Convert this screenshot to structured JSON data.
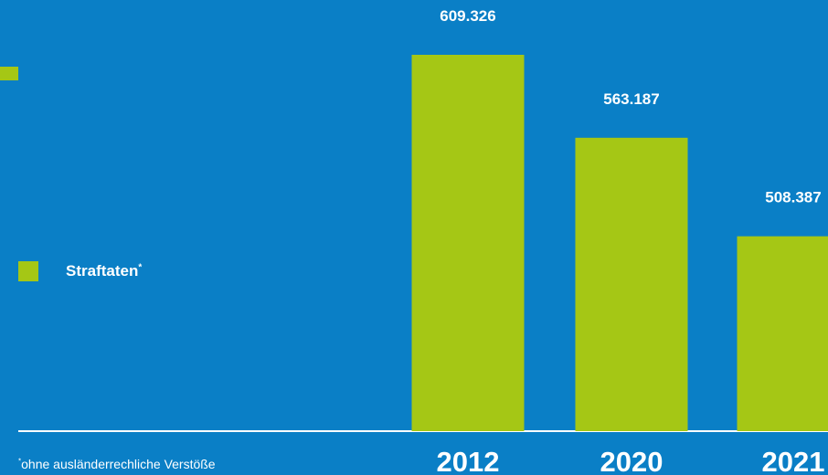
{
  "chart_data": {
    "type": "bar",
    "categories": [
      "2012",
      "2020",
      "2021"
    ],
    "values": [
      609326,
      563187,
      508387
    ],
    "value_labels": [
      "609.326",
      "563.187",
      "508.387"
    ],
    "legend": {
      "label": "Straftaten",
      "marker": "*"
    },
    "footnote": {
      "marker": "*",
      "text": "ohne ausländerrechliche Verstöße"
    },
    "ylim": [
      400000,
      620000
    ],
    "grid": false
  },
  "colors": {
    "background": "#0a7fc6",
    "bar": "#a5c715",
    "text": "#ffffff",
    "axis": "#ffffff"
  }
}
